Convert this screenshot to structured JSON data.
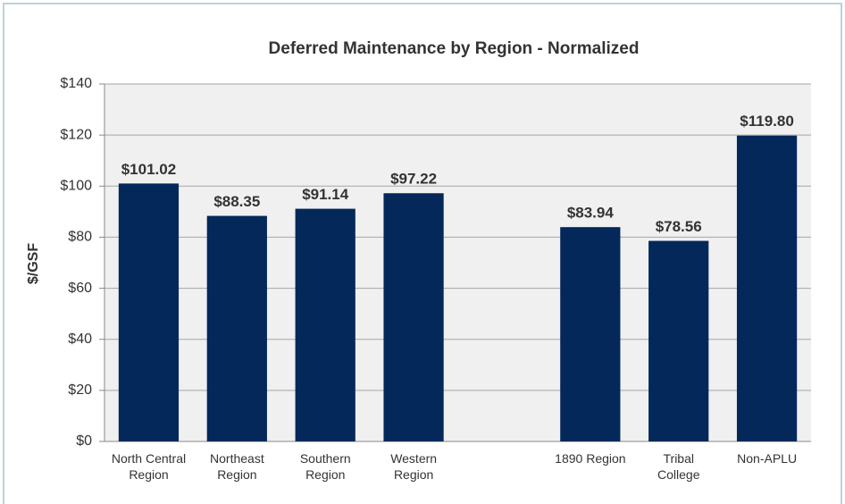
{
  "chart_data": {
    "type": "bar",
    "title": "Deferred Maintenance by Region - Normalized",
    "y_label": "$/GSF",
    "categories": [
      "North Central\nRegion",
      "Northeast\nRegion",
      "Southern\nRegion",
      "Western\nRegion",
      null,
      "1890 Region",
      "Tribal\nCollege",
      "Non-APLU"
    ],
    "values": [
      101.02,
      88.35,
      91.14,
      97.22,
      null,
      83.94,
      78.56,
      119.8
    ],
    "value_labels": [
      "$101.02",
      "$88.35",
      "$91.14",
      "$97.22",
      null,
      "$83.94",
      "$78.56",
      "$119.80"
    ],
    "color": "#04285a",
    "ylim": [
      0,
      140
    ],
    "yticks": [
      {
        "value": 0,
        "label": "$0"
      },
      {
        "value": 20,
        "label": "$20"
      },
      {
        "value": 40,
        "label": "$40"
      },
      {
        "value": 60,
        "label": "$60"
      },
      {
        "value": 80,
        "label": "$80"
      },
      {
        "value": 100,
        "label": "$100"
      },
      {
        "value": 120,
        "label": "$120"
      },
      {
        "value": 140,
        "label": "$140"
      }
    ],
    "grid": true
  }
}
